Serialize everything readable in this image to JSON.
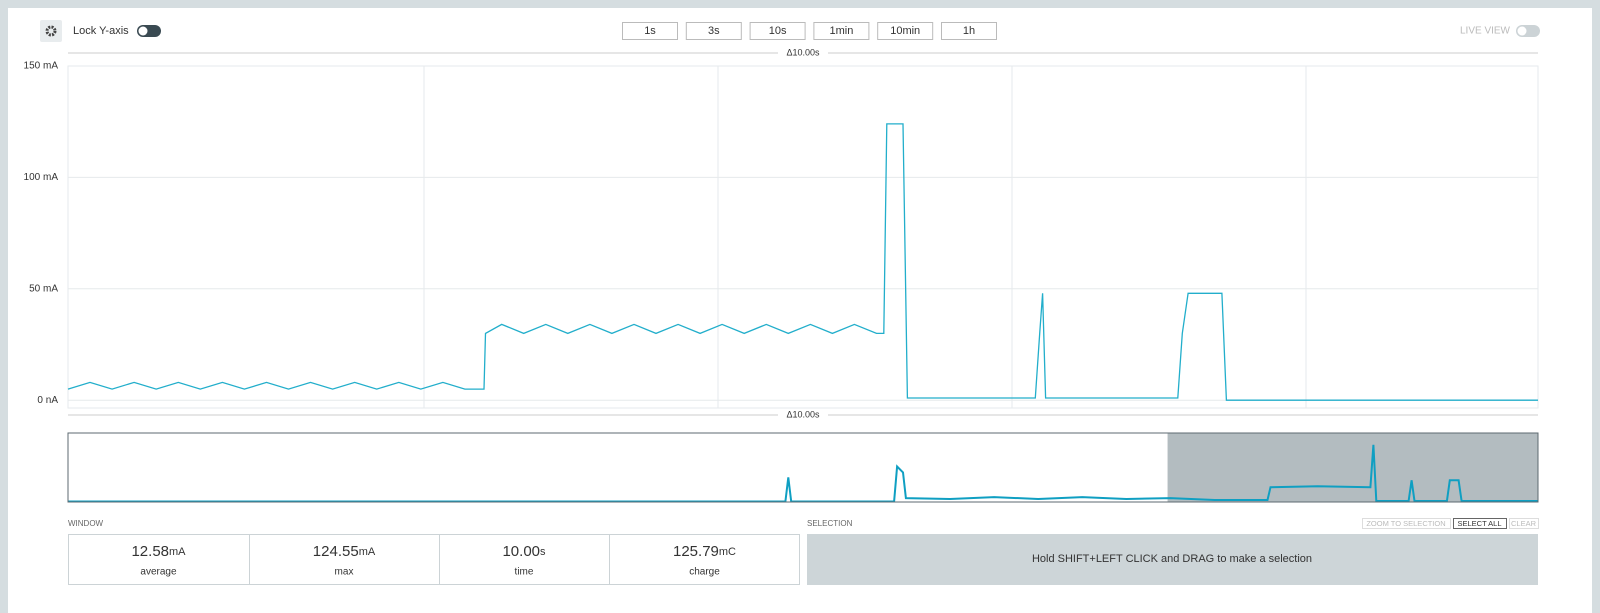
{
  "toolbar": {
    "lock_label": "Lock Y-axis",
    "live_label": "LIVE VIEW",
    "buttons": [
      "1s",
      "3s",
      "10s",
      "1min",
      "10min",
      "1h"
    ]
  },
  "chart_data": [
    {
      "type": "line",
      "span_label": "Δ10.00s",
      "color": "#22aecb",
      "x": [
        0,
        0.15,
        0.3,
        0.45,
        0.6,
        0.75,
        0.9,
        1.05,
        1.2,
        1.35,
        1.5,
        1.65,
        1.8,
        1.95,
        2.1,
        2.25,
        2.4,
        2.55,
        2.7,
        2.83,
        2.84,
        2.95,
        3.1,
        3.25,
        3.4,
        3.55,
        3.7,
        3.85,
        4.0,
        4.15,
        4.3,
        4.45,
        4.6,
        4.75,
        4.9,
        5.05,
        5.2,
        5.35,
        5.5,
        5.55,
        5.57,
        5.68,
        5.69,
        5.71,
        6.58,
        6.61,
        6.63,
        6.65,
        7.55,
        7.58,
        7.62,
        7.85,
        7.88,
        10
      ],
      "values": [
        5,
        8,
        5,
        8,
        5,
        8,
        5,
        8,
        5,
        8,
        5,
        8,
        5,
        8,
        5,
        8,
        5,
        8,
        5,
        5,
        30,
        34,
        30,
        34,
        30,
        34,
        30,
        34,
        30,
        34,
        30,
        34,
        30,
        34,
        30,
        34,
        30,
        34,
        30,
        30,
        124,
        124,
        85,
        1,
        1,
        30,
        48,
        1,
        1,
        30,
        48,
        48,
        0,
        0
      ],
      "xlim": [
        0,
        10
      ],
      "ylim": [
        -3.5,
        150
      ],
      "yticks": [
        {
          "value": 0,
          "label": "0 nA"
        },
        {
          "value": 50,
          "label": "50 mA"
        },
        {
          "value": 100,
          "label": "100 mA"
        },
        {
          "value": 150,
          "label": "150 mA"
        }
      ],
      "grid": true
    },
    {
      "type": "line",
      "span_label": "Δ10.00s",
      "color": "#0f9fc2",
      "x": [
        0,
        4.88,
        4.9,
        4.92,
        5.62,
        5.64,
        5.68,
        5.7,
        6.0,
        6.3,
        6.6,
        6.9,
        7.2,
        7.5,
        7.8,
        8.16,
        8.18,
        8.5,
        8.86,
        8.88,
        8.9,
        9.12,
        9.14,
        9.16,
        9.38,
        9.4,
        9.46,
        9.48,
        10
      ],
      "values": [
        0.5,
        0.5,
        25,
        0.5,
        0.5,
        36,
        30,
        4,
        3,
        5,
        3,
        5,
        3,
        4,
        2,
        2,
        15,
        16,
        15,
        58,
        1,
        1,
        22,
        1,
        1,
        22,
        22,
        1,
        1
      ],
      "xlim": [
        0,
        10
      ],
      "ylim": [
        0,
        70
      ],
      "selection": [
        7.48,
        10
      ]
    }
  ],
  "window": {
    "title": "WINDOW",
    "stats": [
      {
        "value": "12.58",
        "unit": "mA",
        "label": "average"
      },
      {
        "value": "124.55",
        "unit": "mA",
        "label": "max"
      },
      {
        "value": "10.00",
        "unit": "s",
        "label": "time"
      },
      {
        "value": "125.79",
        "unit": "mC",
        "label": "charge"
      }
    ]
  },
  "selection": {
    "title": "SELECTION",
    "buttons": [
      "ZOOM TO SELECTION",
      "SELECT ALL",
      "CLEAR"
    ],
    "hint": "Hold SHIFT+LEFT CLICK and DRAG to make a selection"
  }
}
